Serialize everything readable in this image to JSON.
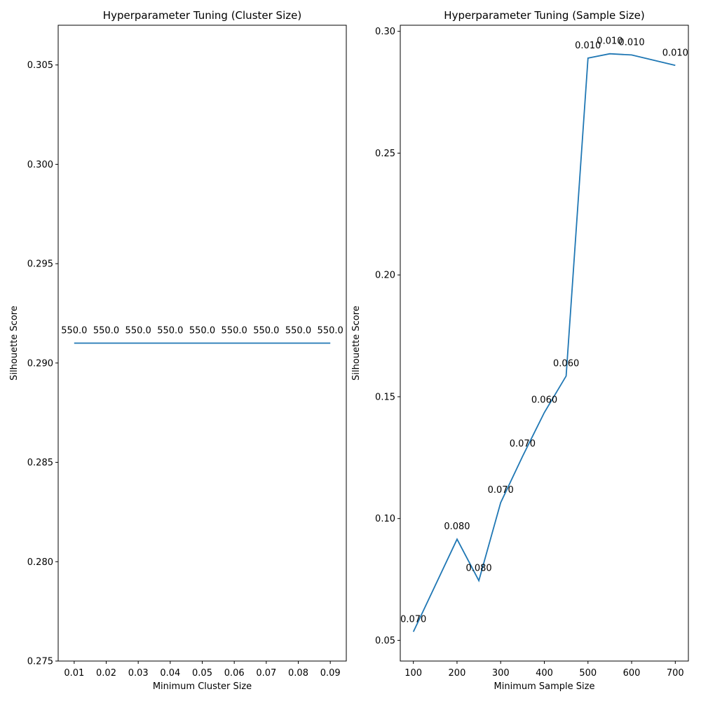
{
  "chart_data": [
    {
      "type": "line",
      "title": "Hyperparameter Tuning (Cluster Size)",
      "xlabel": "Minimum Cluster Size",
      "ylabel": "Silhouette Score",
      "xlim": [
        0.005,
        0.095
      ],
      "ylim": [
        0.275,
        0.307
      ],
      "xticks": [
        0.01,
        0.02,
        0.03,
        0.04,
        0.05,
        0.06,
        0.07,
        0.08,
        0.09
      ],
      "xtick_labels": [
        "0.01",
        "0.02",
        "0.03",
        "0.04",
        "0.05",
        "0.06",
        "0.07",
        "0.08",
        "0.09"
      ],
      "yticks": [
        0.275,
        0.28,
        0.285,
        0.29,
        0.295,
        0.3,
        0.305
      ],
      "ytick_labels": [
        "0.275",
        "0.280",
        "0.285",
        "0.290",
        "0.295",
        "0.300",
        "0.305"
      ],
      "grid": false,
      "x": [
        0.01,
        0.02,
        0.03,
        0.04,
        0.05,
        0.06,
        0.07,
        0.08,
        0.09
      ],
      "y": [
        0.291,
        0.291,
        0.291,
        0.291,
        0.291,
        0.291,
        0.291,
        0.291,
        0.291
      ],
      "annotations": [
        "550.0",
        "550.0",
        "550.0",
        "550.0",
        "550.0",
        "550.0",
        "550.0",
        "550.0",
        "550.0"
      ]
    },
    {
      "type": "line",
      "title": "Hyperparameter Tuning (Sample Size)",
      "xlabel": "Minimum Sample Size",
      "ylabel": "Silhouette Score",
      "xlim": [
        70,
        730
      ],
      "ylim": [
        0.0415,
        0.3025
      ],
      "xticks": [
        100,
        200,
        300,
        400,
        500,
        600,
        700
      ],
      "xtick_labels": [
        "100",
        "200",
        "300",
        "400",
        "500",
        "600",
        "700"
      ],
      "yticks": [
        0.05,
        0.1,
        0.15,
        0.2,
        0.25,
        0.3
      ],
      "ytick_labels": [
        "0.05",
        "0.10",
        "0.15",
        "0.20",
        "0.25",
        "0.30"
      ],
      "grid": false,
      "x": [
        100,
        200,
        250,
        300,
        350,
        400,
        450,
        500,
        550,
        600,
        700
      ],
      "y": [
        0.0535,
        0.0915,
        0.0745,
        0.1065,
        0.1255,
        0.1435,
        0.1585,
        0.289,
        0.2908,
        0.2903,
        0.286
      ],
      "annotations": [
        "0.070",
        "0.080",
        "0.080",
        "0.070",
        "0.070",
        "0.060",
        "0.060",
        "0.010",
        "0.010",
        "0.010",
        "0.010"
      ]
    }
  ]
}
